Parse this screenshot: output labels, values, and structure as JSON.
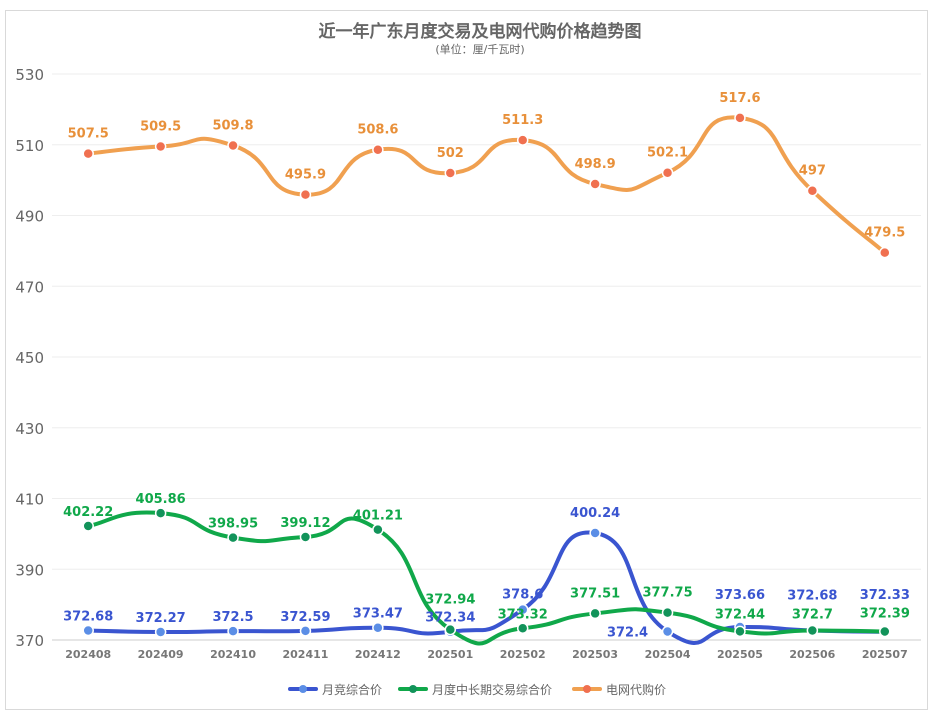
{
  "chart_data": {
    "type": "line",
    "title": "近一年广东月度交易及电网代购价格趋势图",
    "subtitle": "(单位：厘/千瓦时)",
    "xlabel": "",
    "ylabel": "",
    "ylim": [
      370,
      530
    ],
    "yticks": [
      370,
      390,
      410,
      430,
      450,
      470,
      490,
      510,
      530
    ],
    "grid": true,
    "legend_position": "bottom",
    "categories": [
      "202408",
      "202409",
      "202410",
      "202411",
      "202412",
      "202501",
      "202502",
      "202503",
      "202504",
      "202505",
      "202506",
      "202507"
    ],
    "series": [
      {
        "name": "月竞综合价",
        "color": "#3a55d0",
        "marker": "#5b8ee6",
        "values": [
          372.68,
          372.27,
          372.5,
          372.59,
          373.47,
          372.34,
          378.6,
          400.24,
          372.4,
          373.66,
          372.68,
          372.33
        ]
      },
      {
        "name": "月度中长期交易综合价",
        "color": "#10a84a",
        "marker": "#12935a",
        "values": [
          402.22,
          405.86,
          398.95,
          399.12,
          401.21,
          372.94,
          373.32,
          377.51,
          377.75,
          372.44,
          372.7,
          372.39
        ]
      },
      {
        "name": "电网代购价",
        "color": "#f0a050",
        "marker": "#f07050",
        "values": [
          507.5,
          509.5,
          509.8,
          495.9,
          508.6,
          502,
          511.3,
          498.9,
          502.1,
          517.6,
          497,
          479.5
        ]
      }
    ]
  }
}
